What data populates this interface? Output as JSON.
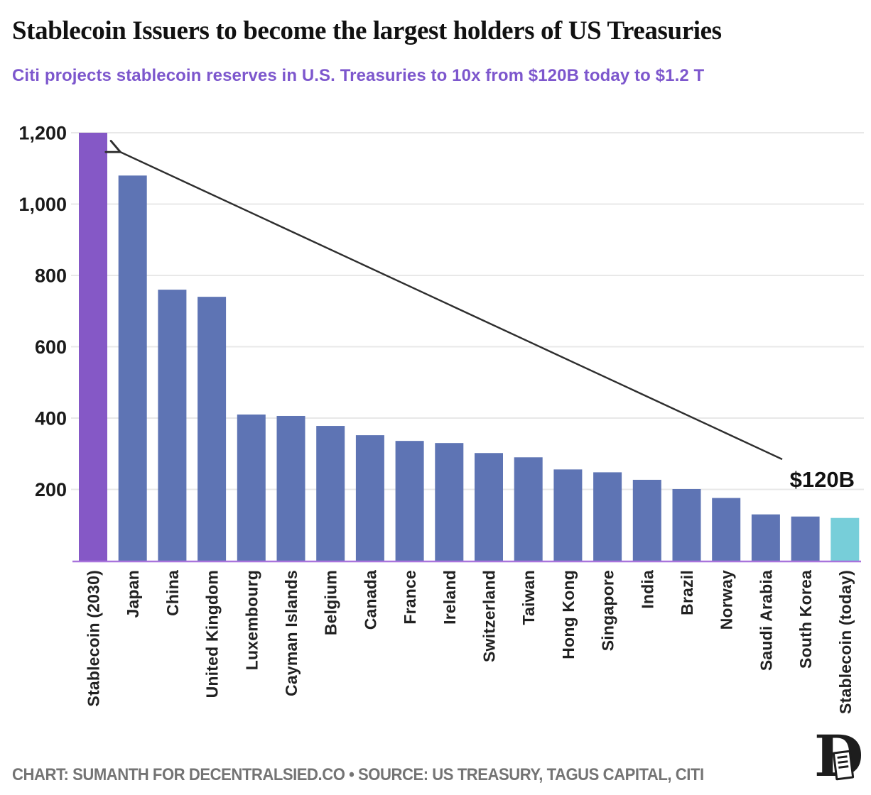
{
  "header": {
    "title": "Stablecoin Issuers to become the largest holders of US Treasuries",
    "subtitle": "Citi projects stablecoin reserves in U.S. Treasuries to 10x from $120B today to $1.2 T",
    "subtitle_color": "#7d57cd"
  },
  "chart_data": {
    "type": "bar",
    "title": "Stablecoin Issuers to become the largest holders of US Treasuries",
    "subtitle": "Citi projects stablecoin reserves in U.S. Treasuries to 10x from $120B today to $1.2 T",
    "categories": [
      "Stablecoin (2030)",
      "Japan",
      "China",
      "United Kingdom",
      "Luxembourg",
      "Cayman Islands",
      "Belgium",
      "Canada",
      "France",
      "Ireland",
      "Switzerland",
      "Taiwan",
      "Hong Kong",
      "Singapore",
      "India",
      "Brazil",
      "Norway",
      "Saudi Arabia",
      "South Korea",
      "Stablecoin (today)"
    ],
    "values": [
      1200,
      1080,
      760,
      740,
      410,
      406,
      378,
      352,
      336,
      330,
      302,
      290,
      256,
      248,
      227,
      201,
      176,
      130,
      124,
      120
    ],
    "xlabel": "",
    "ylabel": "",
    "ylim": [
      0,
      1200
    ],
    "y_axis": {
      "range": [
        0,
        1200
      ],
      "ticks": [
        {
          "value": 200,
          "label": "200"
        },
        {
          "value": 400,
          "label": "400"
        },
        {
          "value": 600,
          "label": "600"
        },
        {
          "value": 800,
          "label": "800"
        },
        {
          "value": 1000,
          "label": "1,000"
        },
        {
          "value": 1200,
          "label": "1,200"
        }
      ]
    },
    "grid": "horizontal",
    "legend": "none",
    "x_label_rotation": -90,
    "highlighted_bars": {
      "projected": "Stablecoin (2030)",
      "today": "Stablecoin (today)"
    },
    "annotation": {
      "text": "$120B",
      "arrow_points_to": "Stablecoin (2030)"
    },
    "colors": {
      "bar_default": "#5e74b4",
      "bar_projected": "#8558c6",
      "bar_today": "#77ced9",
      "grid": "#e8e8e8",
      "axis_line": "#a873dc",
      "arrow": "#2e2e2e",
      "annotation_text": "#111111",
      "tick_text": "#1a1a1a"
    }
  },
  "footer": {
    "credit": "CHART: SUMANTH FOR DECENTRALSIED.CO • SOURCE: US TREASURY, TAGUS CAPITAL, CITI",
    "logo_letter": "D"
  }
}
